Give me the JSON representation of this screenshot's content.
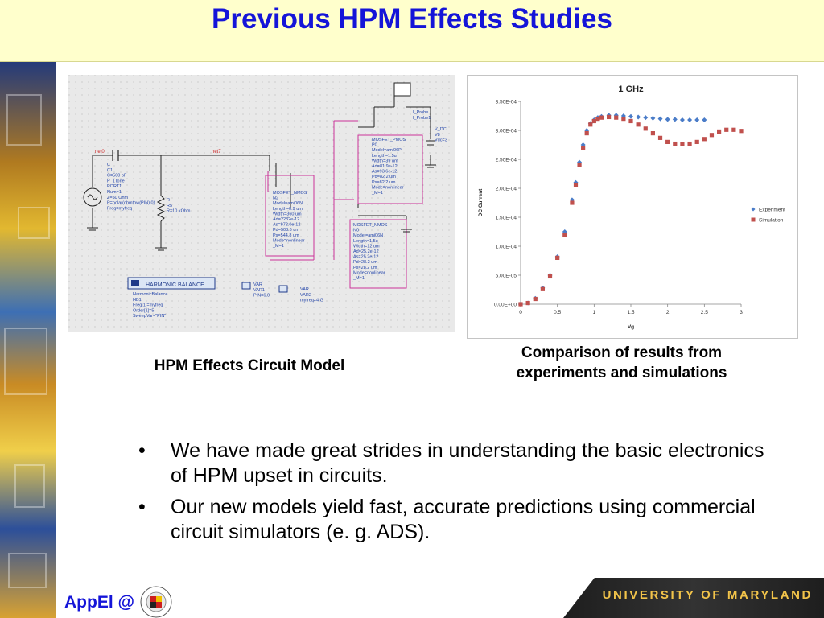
{
  "slide": {
    "title": "Previous HPM Effects Studies",
    "circuit_caption": "HPM Effects Circuit Model",
    "chart_caption_line1": "Comparison of results from",
    "chart_caption_line2": "experiments and simulations",
    "bullets": [
      "We have made great strides in understanding the basic electronics of HPM upset in circuits.",
      "Our new models yield fast, accurate predictions using commercial circuit simulators (e. g. ADS)."
    ],
    "bullet_glyph": "•",
    "footer_left": "AppEl @",
    "footer_right": "UNIVERSITY OF MARYLAND"
  },
  "circuit": {
    "net_left": "net0",
    "net_top": "net7",
    "port": [
      "C",
      "C1",
      "C=500 pF",
      "P_1Tone",
      "PORT1",
      "Num=1",
      "Z=50 Ohm",
      "P=polar(dbmtow(PIN),0)",
      "Freq=myfreq"
    ],
    "resistor": [
      "R",
      "R5",
      "R=10 kOhm"
    ],
    "probe": [
      "I_Probe",
      "I_Probe1"
    ],
    "vdc": [
      "V_DC",
      "V8",
      "Vdc=3"
    ],
    "pmos": [
      "MOSFET_PMOS",
      "P0",
      "Model=ami06P",
      "Length=1.5u",
      "Width=39 um",
      "Ad=81.9e-12",
      "As=93.6e-12",
      "Pd=82.2 um",
      "Ps=82.2 um",
      "Mode=nonlinear",
      "_M=1"
    ],
    "nmos_mid": [
      "MOSFET_NMOS",
      "N2",
      "Model=ami06N",
      "Length=0.9 um",
      "Width=360 um",
      "Ad=2232e-12",
      "As=972.0e-12",
      "Pd=508.6 um",
      "Ps=544.8 um",
      "Mode=nonlinear",
      "_M=1"
    ],
    "nmos_right": [
      "MOSFET_NMOS",
      "N0",
      "Model=ami06N",
      "Length=1.5u",
      "Width=12 um",
      "Ad=25.2e-12",
      "As=25.2e-12",
      "Pd=28.2 um",
      "Ps=28.2 um",
      "Mode=nonlinear",
      "_M=1"
    ],
    "hb_label": "HARMONIC BALANCE",
    "hb": [
      "HarmonicBalance",
      "HB1",
      "Freq[1]=myfreq",
      "Order[1]=5",
      "SweepVar=\"PIN\""
    ],
    "var1": [
      "VAR",
      "VAR1",
      "PIN=6.0"
    ],
    "var2": [
      "VAR",
      "VAR2",
      "myfreq=4 G"
    ]
  },
  "chart_data": {
    "type": "scatter",
    "title": "1 GHz",
    "xlabel": "Vg",
    "ylabel": "DC Current",
    "xlim": [
      0,
      3
    ],
    "ylim": [
      0,
      0.00035
    ],
    "xticks": [
      "0",
      "0.5",
      "1",
      "1.5",
      "2",
      "2.5",
      "3"
    ],
    "yticks": [
      "0.00E+00",
      "5.00E-05",
      "1.00E-04",
      "1.50E-04",
      "2.00E-04",
      "2.50E-04",
      "3.00E-04",
      "3.50E-04"
    ],
    "legend_position": "right",
    "series": [
      {
        "name": "Experiment",
        "color": "#4a7cc8",
        "marker": "diamond",
        "x": [
          0,
          0.1,
          0.2,
          0.3,
          0.4,
          0.5,
          0.6,
          0.7,
          0.75,
          0.8,
          0.85,
          0.9,
          0.95,
          1.0,
          1.05,
          1.1,
          1.2,
          1.3,
          1.4,
          1.5,
          1.6,
          1.7,
          1.8,
          1.9,
          2.0,
          2.1,
          2.2,
          2.3,
          2.4,
          2.5
        ],
        "y": [
          0,
          2e-06,
          1e-05,
          2.8e-05,
          5e-05,
          8.2e-05,
          0.000125,
          0.00018,
          0.00021,
          0.000245,
          0.000275,
          0.0003,
          0.000312,
          0.000318,
          0.000322,
          0.000324,
          0.000326,
          0.000326,
          0.000325,
          0.000324,
          0.000323,
          0.000322,
          0.000321,
          0.00032,
          0.000319,
          0.000319,
          0.000318,
          0.000318,
          0.000318,
          0.000318
        ]
      },
      {
        "name": "Simulation",
        "color": "#c0504d",
        "marker": "square",
        "x": [
          0,
          0.1,
          0.2,
          0.3,
          0.4,
          0.5,
          0.6,
          0.7,
          0.75,
          0.8,
          0.85,
          0.9,
          0.95,
          1.0,
          1.05,
          1.1,
          1.2,
          1.3,
          1.4,
          1.5,
          1.6,
          1.7,
          1.8,
          1.9,
          2.0,
          2.1,
          2.2,
          2.3,
          2.4,
          2.5,
          2.6,
          2.7,
          2.8,
          2.9,
          3.0
        ],
        "y": [
          0,
          2e-06,
          9e-06,
          2.6e-05,
          4.8e-05,
          8e-05,
          0.00012,
          0.000175,
          0.000205,
          0.00024,
          0.00027,
          0.000295,
          0.00031,
          0.000316,
          0.00032,
          0.000322,
          0.000323,
          0.000322,
          0.00032,
          0.000316,
          0.00031,
          0.000303,
          0.000295,
          0.000287,
          0.00028,
          0.000277,
          0.000276,
          0.000277,
          0.00028,
          0.000285,
          0.000292,
          0.000298,
          0.000301,
          0.000301,
          0.000299
        ]
      }
    ]
  }
}
